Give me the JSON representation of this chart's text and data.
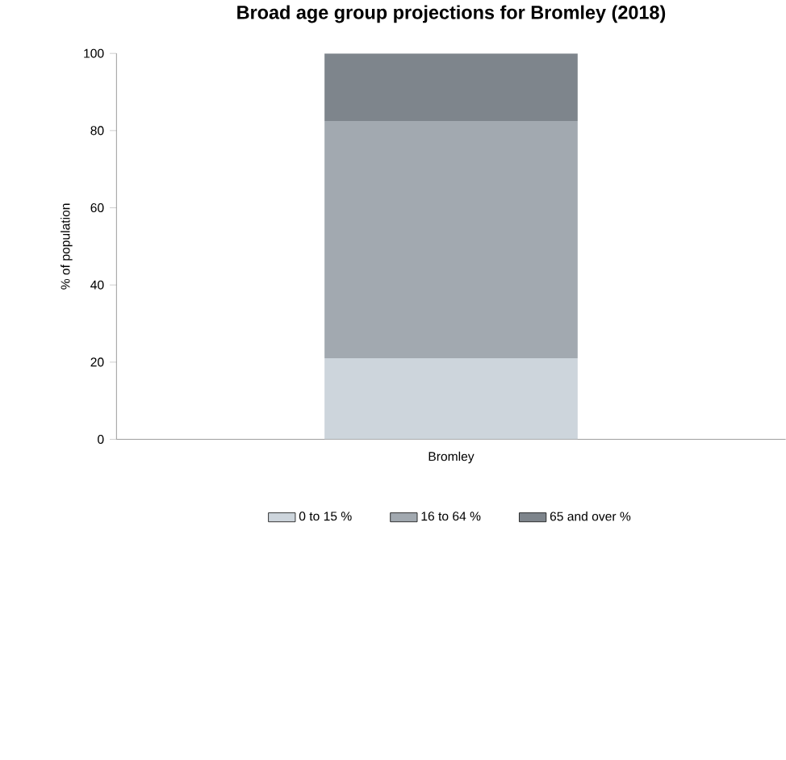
{
  "chart_data": {
    "type": "bar",
    "title": "Broad age group projections for Bromley (2018)",
    "ylabel": "% of population",
    "categories": [
      "Bromley"
    ],
    "stacked": true,
    "ylim": [
      0,
      100
    ],
    "yticks": [
      0,
      20,
      40,
      60,
      80,
      100
    ],
    "legend": "bottom",
    "grid": false,
    "series": [
      {
        "name": "0 to 15 %",
        "color": "#cdd5dc",
        "values": [
          21
        ]
      },
      {
        "name": "16 to 64 %",
        "color": "#a2a9b0",
        "values": [
          61.5
        ]
      },
      {
        "name": "65 and over %",
        "color": "#7e858c",
        "values": [
          17.5
        ]
      }
    ]
  }
}
